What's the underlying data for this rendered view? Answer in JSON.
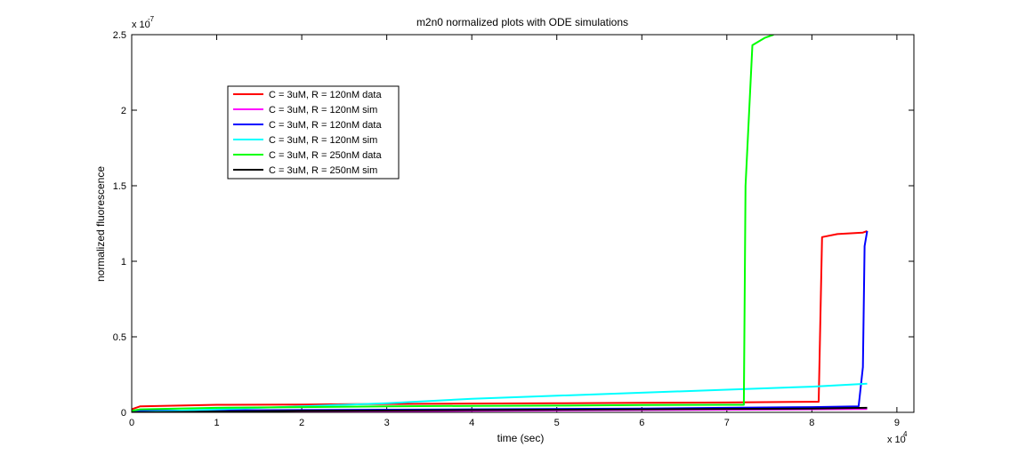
{
  "chart_data": {
    "type": "line",
    "title": "m2n0 normalized plots with ODE simulations",
    "xlabel": "time (sec)",
    "ylabel": "normalized fluorescence",
    "x_multiplier_label": "x 10",
    "x_multiplier_exp": "4",
    "y_multiplier_label": "x 10",
    "y_multiplier_exp": "-7",
    "xlim": [
      0,
      9.2
    ],
    "ylim": [
      0,
      2.5
    ],
    "xticks": [
      0,
      1,
      2,
      3,
      4,
      5,
      6,
      7,
      8,
      9
    ],
    "yticks": [
      0,
      0.5,
      1,
      1.5,
      2,
      2.5
    ],
    "xtick_labels": [
      "0",
      "1",
      "2",
      "3",
      "4",
      "5",
      "6",
      "7",
      "8",
      "9"
    ],
    "ytick_labels": [
      "0",
      "0.5",
      "1",
      "1.5",
      "2",
      "2.5"
    ],
    "grid": false,
    "legend_position": "upper-left",
    "series": [
      {
        "name": "C = 3uM, R = 120nM data",
        "color": "#ff0000",
        "x": [
          0,
          0.1,
          1,
          2,
          3,
          4,
          5,
          6,
          7,
          8,
          8.08,
          8.12,
          8.3,
          8.6,
          8.65
        ],
        "y": [
          0.02,
          0.04,
          0.05,
          0.052,
          0.055,
          0.058,
          0.06,
          0.063,
          0.065,
          0.07,
          0.07,
          1.16,
          1.18,
          1.19,
          1.2
        ]
      },
      {
        "name": "C = 3uM, R = 120nM sim",
        "color": "#ff00ff",
        "x": [
          0,
          2,
          4,
          6,
          8,
          8.65
        ],
        "y": [
          0.0,
          0.005,
          0.01,
          0.015,
          0.02,
          0.022
        ]
      },
      {
        "name": "C = 3uM, R = 120nM data",
        "color": "#0000ff",
        "x": [
          0,
          2,
          4,
          6,
          7,
          8,
          8.55,
          8.6,
          8.62,
          8.65
        ],
        "y": [
          0.01,
          0.015,
          0.02,
          0.025,
          0.03,
          0.035,
          0.04,
          0.3,
          1.1,
          1.2
        ]
      },
      {
        "name": "C = 3uM, R = 120nM sim",
        "color": "#00ffff",
        "x": [
          0,
          1,
          2,
          3,
          4,
          5,
          6,
          7,
          8,
          8.65
        ],
        "y": [
          0.0,
          0.02,
          0.04,
          0.06,
          0.09,
          0.11,
          0.13,
          0.15,
          0.17,
          0.19
        ]
      },
      {
        "name": "C = 3uM, R = 250nM data",
        "color": "#00ff00",
        "x": [
          0,
          0.1,
          1,
          2,
          3,
          4,
          5,
          6,
          7,
          7.2,
          7.22,
          7.3,
          7.45,
          7.55
        ],
        "y": [
          0.01,
          0.02,
          0.03,
          0.035,
          0.04,
          0.043,
          0.045,
          0.048,
          0.05,
          0.05,
          1.5,
          2.43,
          2.48,
          2.5
        ]
      },
      {
        "name": "C = 3uM, R = 250nM sim",
        "color": "#000000",
        "x": [
          0,
          2,
          4,
          6,
          8,
          8.65
        ],
        "y": [
          0.0,
          0.01,
          0.015,
          0.02,
          0.025,
          0.03
        ]
      }
    ]
  }
}
